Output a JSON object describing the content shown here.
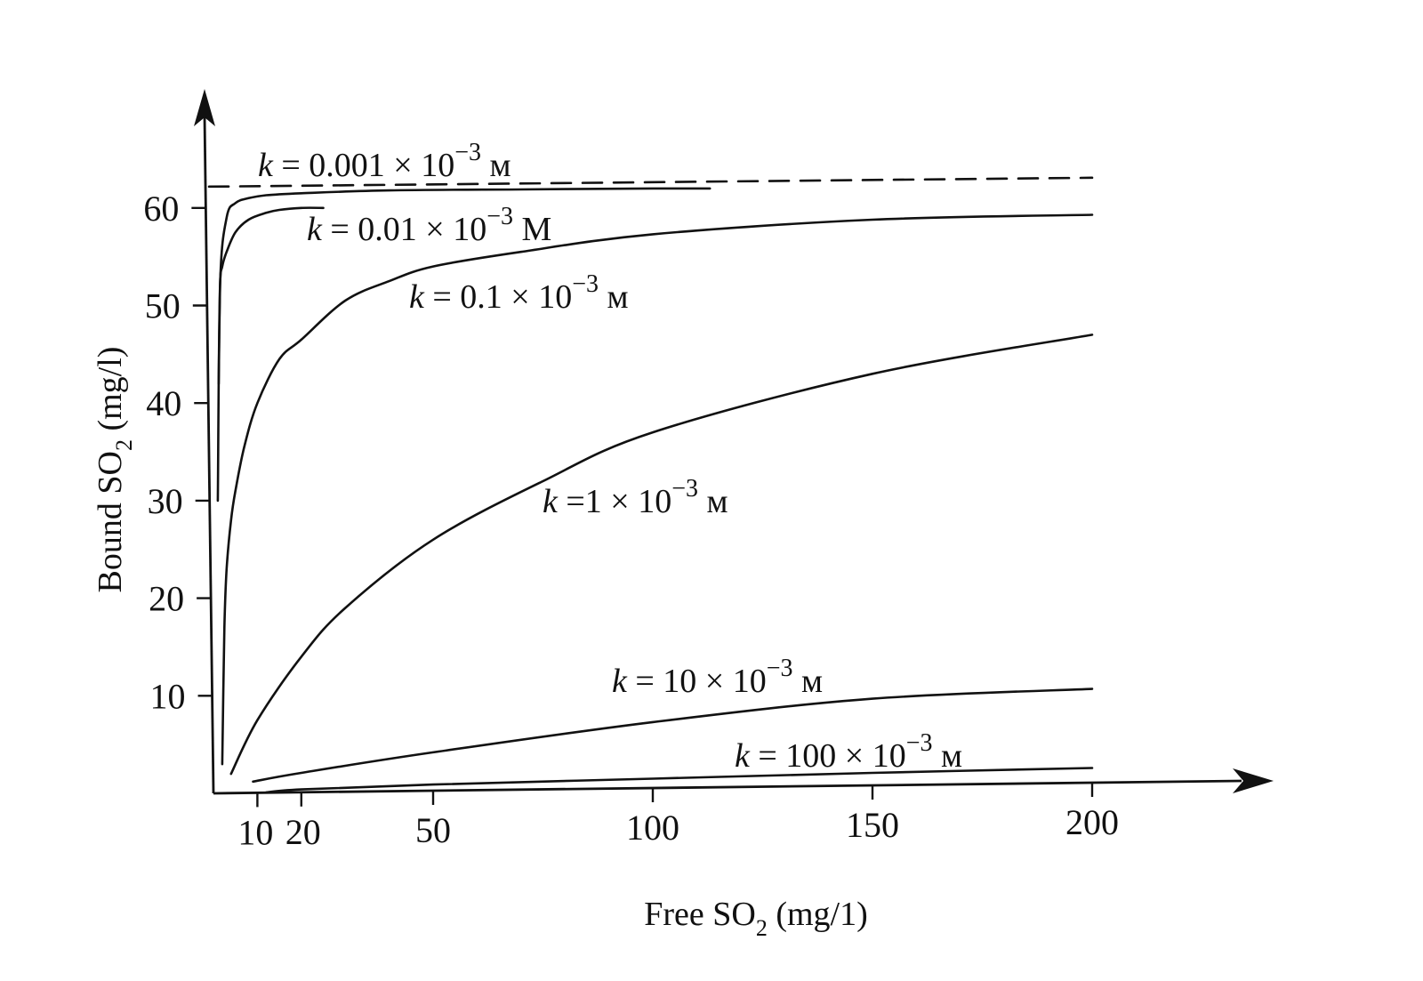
{
  "chart_data": {
    "type": "line",
    "xlabel": {
      "main": "Free SO",
      "sub": "2",
      "tail": " (mg/1)"
    },
    "ylabel": {
      "main": "Bound SO",
      "sub": "2",
      "tail": " (mg/l)"
    },
    "xlim": [
      0,
      230
    ],
    "ylim": [
      0,
      72
    ],
    "x_ticks": [
      {
        "value": 10,
        "label": "10"
      },
      {
        "value": 20,
        "label": "20"
      },
      {
        "value": 50,
        "label": "50"
      },
      {
        "value": 100,
        "label": "100"
      },
      {
        "value": 150,
        "label": "150"
      },
      {
        "value": 200,
        "label": "200"
      }
    ],
    "y_ticks": [
      {
        "value": 10,
        "label": "10"
      },
      {
        "value": 20,
        "label": "20"
      },
      {
        "value": 30,
        "label": "30"
      },
      {
        "value": 40,
        "label": "40"
      },
      {
        "value": 50,
        "label": "50"
      },
      {
        "value": 60,
        "label": "60"
      }
    ],
    "asymptote": {
      "y": 62,
      "style": "dashed"
    },
    "grid": false,
    "series": [
      {
        "label": {
          "k": "k",
          "eq": " = 0.001 × 10",
          "exp": "−3",
          "unit": " м"
        },
        "x": [
          1,
          1.5,
          3,
          5,
          8,
          12,
          20,
          40,
          70,
          100,
          113
        ],
        "y": [
          30,
          52,
          59,
          60.5,
          61,
          61.3,
          61.5,
          61.8,
          61.9,
          62,
          62
        ]
      },
      {
        "label": {
          "k": "k",
          "eq": " = 0.01 × 10",
          "exp": "−3",
          "unit": " M"
        },
        "x": [
          1.2,
          1.5,
          2,
          3,
          5,
          8,
          12,
          15,
          20,
          25
        ],
        "y": [
          42,
          52,
          54,
          55.5,
          57.5,
          58.8,
          59.5,
          59.8,
          60,
          60
        ]
      },
      {
        "label": {
          "k": "k",
          "eq": " = 0.1 × 10",
          "exp": "−3",
          "unit": " м"
        },
        "x": [
          2,
          2.5,
          3,
          4,
          5,
          7,
          10,
          15,
          20,
          30,
          40,
          50,
          70,
          100,
          150,
          200
        ],
        "y": [
          3,
          17,
          23,
          28,
          31,
          35.5,
          40,
          44.5,
          46.5,
          50.5,
          52.5,
          54,
          55.5,
          57.3,
          58.8,
          59.3
        ]
      },
      {
        "label": {
          "k": "k",
          "eq": " =1 × 10",
          "exp": "−3",
          "unit": " м"
        },
        "x": [
          4,
          10,
          20,
          30,
          50,
          75,
          100,
          150,
          200
        ],
        "y": [
          2,
          7.5,
          14,
          19,
          26,
          32,
          37,
          43,
          47
        ]
      },
      {
        "label": {
          "k": "k",
          "eq": " = 10 × 10",
          "exp": "−3",
          "unit": " м"
        },
        "x": [
          9,
          20,
          50,
          100,
          150,
          200
        ],
        "y": [
          1.2,
          2.1,
          4.2,
          7.3,
          9.7,
          10.7
        ]
      },
      {
        "label": {
          "k": "k",
          "eq": " = 100 × 10",
          "exp": "−3",
          "unit": " м"
        },
        "x": [
          12,
          20,
          50,
          100,
          150,
          200
        ],
        "y": [
          0.1,
          0.4,
          0.9,
          1.5,
          2.1,
          2.6
        ]
      }
    ]
  }
}
